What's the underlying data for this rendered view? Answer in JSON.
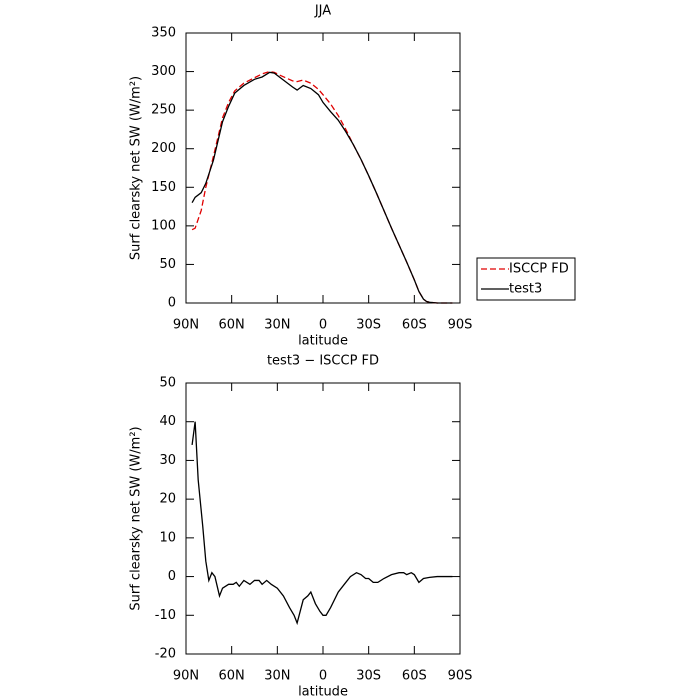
{
  "chart_data": [
    {
      "type": "line",
      "title": "JJA",
      "x_label": "latitude",
      "y_label": "Surf clearsky net SW (W/m²)",
      "x": [
        86,
        84,
        80,
        77,
        72,
        66,
        62,
        58,
        52,
        45,
        40,
        35,
        32,
        28,
        20,
        17,
        13,
        8,
        3,
        0,
        -5,
        -10,
        -15,
        -20,
        -25,
        -30,
        -35,
        -40,
        -45,
        -50,
        -55,
        -60,
        -63,
        -66,
        -68,
        -70,
        -75,
        -80,
        -85
      ],
      "series": [
        {
          "name": "ISCCP FD",
          "color": "#e00000",
          "dashed": true,
          "values": [
            95,
            97,
            120,
            150,
            190,
            240,
            260,
            275,
            285,
            292,
            297,
            300,
            299,
            295,
            288,
            287,
            289,
            285,
            277,
            270,
            258,
            243,
            225,
            205,
            186,
            165,
            143,
            120,
            97,
            75,
            53,
            30,
            15,
            5,
            2,
            1,
            0,
            0,
            0
          ]
        },
        {
          "name": "test3",
          "color": "#000000",
          "dashed": false,
          "values": [
            130,
            137,
            143,
            155,
            185,
            235,
            255,
            272,
            282,
            290,
            293,
            299,
            298,
            292,
            280,
            276,
            282,
            278,
            270,
            260,
            248,
            237,
            222,
            205,
            186,
            165,
            143,
            120,
            97,
            75,
            53,
            30,
            15,
            5,
            2,
            1,
            0,
            0,
            0
          ]
        }
      ],
      "xlim": [
        90,
        -90
      ],
      "xticks": [
        {
          "value": 90,
          "label": "90N"
        },
        {
          "value": 60,
          "label": "60N"
        },
        {
          "value": 30,
          "label": "30N"
        },
        0,
        {
          "value": -30,
          "label": "30S"
        },
        {
          "value": -60,
          "label": "60S"
        },
        {
          "value": -90,
          "label": "90S"
        }
      ],
      "ylim": [
        0,
        350
      ],
      "yticks": [
        0,
        50,
        100,
        150,
        200,
        250,
        300,
        350
      ]
    },
    {
      "type": "line",
      "title": "test3 − ISCCP FD",
      "x_label": "latitude",
      "y_label": "Surf clearsky net SW (W/m²)",
      "x": [
        86,
        84,
        82,
        79,
        77,
        75,
        73,
        71,
        68,
        66,
        62,
        59,
        57,
        55,
        52,
        48,
        45,
        42,
        40,
        37,
        34,
        30,
        26,
        22,
        19,
        17,
        13,
        10,
        8,
        5,
        2,
        0,
        -2,
        -5,
        -10,
        -14,
        -18,
        -22,
        -25,
        -28,
        -30,
        -33,
        -36,
        -40,
        -45,
        -50,
        -53,
        -55,
        -58,
        -60,
        -63,
        -66,
        -70,
        -75,
        -80,
        -85
      ],
      "values": [
        34,
        40,
        25,
        13,
        4,
        -1,
        1,
        0,
        -5,
        -3,
        -2,
        -2,
        -1.5,
        -2.5,
        -1,
        -2,
        -1,
        -1,
        -2,
        -1,
        -2,
        -3,
        -5,
        -8,
        -10,
        -12,
        -6,
        -5,
        -4,
        -7,
        -9,
        -10,
        -10,
        -8,
        -4,
        -2,
        0,
        1,
        0.5,
        -0.5,
        -0.5,
        -1.5,
        -1.5,
        -0.5,
        0.5,
        1,
        1,
        0.5,
        1,
        0.5,
        -1.5,
        -0.5,
        -0.2,
        0,
        0,
        0
      ],
      "color": "#000000",
      "xlim": [
        90,
        -90
      ],
      "xticks": [
        {
          "value": 90,
          "label": "90N"
        },
        {
          "value": 60,
          "label": "60N"
        },
        {
          "value": 30,
          "label": "30N"
        },
        0,
        {
          "value": -30,
          "label": "30S"
        },
        {
          "value": -60,
          "label": "60S"
        },
        {
          "value": -90,
          "label": "90S"
        }
      ],
      "ylim": [
        -20,
        50
      ],
      "yticks": [
        -20,
        -10,
        0,
        10,
        20,
        30,
        40,
        50
      ]
    }
  ]
}
